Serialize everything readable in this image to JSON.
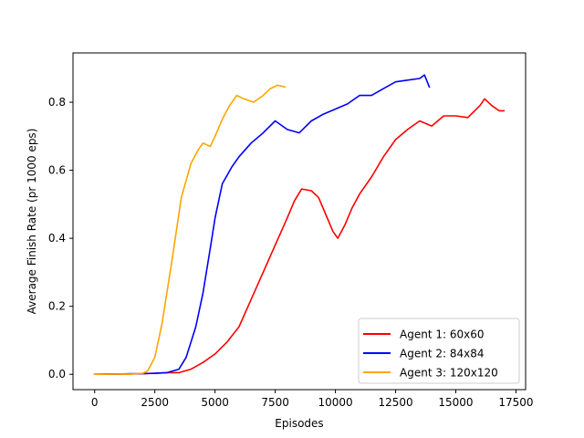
{
  "chart_data": {
    "type": "line",
    "title": "",
    "xlabel": "Episodes",
    "ylabel": "Average Finish Rate (pr 1000 eps)",
    "xlim": [
      -900,
      17900
    ],
    "ylim": [
      -0.045,
      0.945
    ],
    "xticks": [
      0,
      2500,
      5000,
      7500,
      10000,
      12500,
      15000,
      17500
    ],
    "xtick_labels": [
      "0",
      "2500",
      "5000",
      "7500",
      "10000",
      "12500",
      "15000",
      "17500"
    ],
    "yticks": [
      0.0,
      0.2,
      0.4,
      0.6,
      0.8
    ],
    "ytick_labels": [
      "0.0",
      "0.2",
      "0.4",
      "0.6",
      "0.8"
    ],
    "grid": false,
    "legend_position": "lower-right",
    "series": [
      {
        "name": "Agent 1: 60x60",
        "color": "#ff0000",
        "x": [
          0,
          500,
          1000,
          1500,
          2000,
          2500,
          3000,
          3500,
          4000,
          4500,
          5000,
          5500,
          6000,
          6500,
          7000,
          7500,
          8000,
          8300,
          8600,
          9000,
          9300,
          9600,
          9900,
          10100,
          10400,
          10700,
          11000,
          11500,
          12000,
          12500,
          13000,
          13500,
          14000,
          14500,
          15000,
          15500,
          16000,
          16200,
          16500,
          16800,
          17000
        ],
        "y": [
          0.0,
          0.0,
          0.001,
          0.001,
          0.002,
          0.003,
          0.005,
          0.005,
          0.015,
          0.035,
          0.06,
          0.095,
          0.14,
          0.22,
          0.3,
          0.38,
          0.46,
          0.51,
          0.545,
          0.54,
          0.52,
          0.47,
          0.42,
          0.4,
          0.44,
          0.49,
          0.53,
          0.58,
          0.64,
          0.69,
          0.72,
          0.745,
          0.73,
          0.76,
          0.76,
          0.755,
          0.79,
          0.81,
          0.79,
          0.775,
          0.775
        ]
      },
      {
        "name": "Agent 2: 84x84",
        "color": "#0000ff",
        "x": [
          0,
          500,
          1000,
          1500,
          2000,
          2500,
          3000,
          3500,
          3800,
          4200,
          4500,
          4800,
          5000,
          5300,
          5700,
          6000,
          6500,
          7000,
          7500,
          8000,
          8500,
          9000,
          9500,
          10000,
          10500,
          11000,
          11500,
          12000,
          12500,
          13000,
          13500,
          13700,
          13900
        ],
        "y": [
          0.0,
          0.001,
          0.001,
          0.002,
          0.002,
          0.003,
          0.005,
          0.015,
          0.05,
          0.14,
          0.24,
          0.37,
          0.46,
          0.56,
          0.61,
          0.64,
          0.68,
          0.71,
          0.745,
          0.72,
          0.71,
          0.745,
          0.765,
          0.78,
          0.795,
          0.82,
          0.82,
          0.84,
          0.86,
          0.865,
          0.87,
          0.88,
          0.845
        ]
      },
      {
        "name": "Agent 3: 120x120",
        "color": "#ffa500",
        "x": [
          0,
          500,
          1000,
          1500,
          2000,
          2200,
          2500,
          2800,
          3200,
          3600,
          4000,
          4300,
          4500,
          4800,
          5000,
          5300,
          5600,
          5900,
          6200,
          6600,
          7000,
          7300,
          7600,
          7900
        ],
        "y": [
          0.0,
          0.0,
          0.001,
          0.001,
          0.003,
          0.01,
          0.05,
          0.15,
          0.33,
          0.52,
          0.62,
          0.66,
          0.68,
          0.67,
          0.7,
          0.75,
          0.79,
          0.82,
          0.81,
          0.8,
          0.82,
          0.84,
          0.85,
          0.845
        ]
      }
    ]
  }
}
